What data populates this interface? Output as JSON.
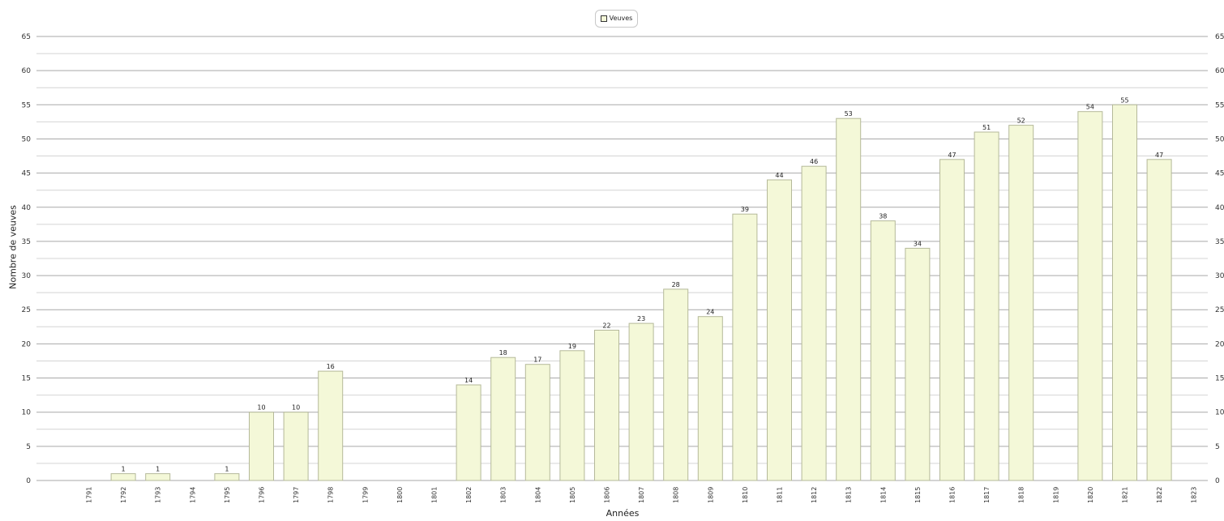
{
  "chart_data": {
    "type": "bar",
    "title": "",
    "xlabel": "Années",
    "ylabel": "Nombre de veuves",
    "ylim": [
      0,
      65
    ],
    "y_ticks": [
      "0",
      "5",
      "10",
      "15",
      "20",
      "25",
      "30",
      "35",
      "40",
      "45",
      "50",
      "55",
      "60",
      "65"
    ],
    "grid": true,
    "legend_position": "top-center",
    "categories": [
      "1791",
      "1792",
      "1793",
      "1794",
      "1795",
      "1796",
      "1797",
      "1798",
      "1799",
      "1800",
      "1801",
      "1802",
      "1803",
      "1804",
      "1805",
      "1806",
      "1807",
      "1808",
      "1809",
      "1810",
      "1811",
      "1812",
      "1813",
      "1814",
      "1815",
      "1816",
      "1817",
      "1818",
      "1819",
      "1820",
      "1821",
      "1822",
      "1823"
    ],
    "series": [
      {
        "name": "Veuves",
        "color": "#f4f8d8",
        "border_color": "#b5b99a",
        "values": [
          null,
          1,
          1,
          null,
          1,
          10,
          10,
          16,
          null,
          null,
          null,
          14,
          18,
          17,
          19,
          22,
          23,
          28,
          24,
          39,
          44,
          46,
          53,
          38,
          34,
          47,
          51,
          52,
          null,
          54,
          55,
          47,
          null
        ]
      }
    ]
  }
}
